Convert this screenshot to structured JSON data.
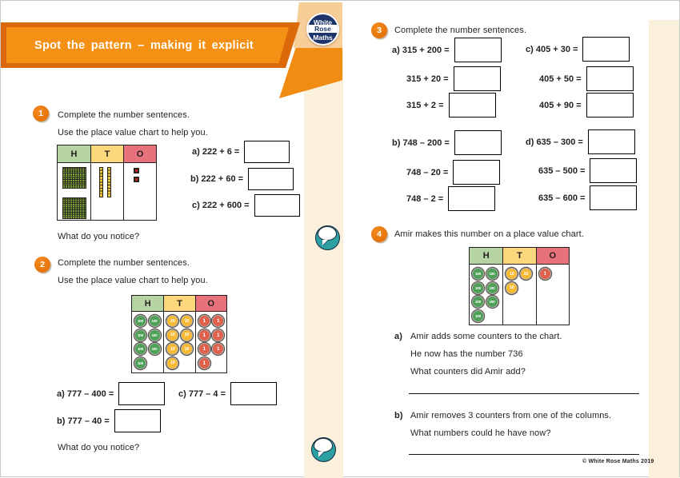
{
  "page": {
    "title": "Spot the pattern – making it explicit",
    "footer": "© White Rose Maths 2019",
    "logo": {
      "line1": "White",
      "line2": "Rose",
      "line3": "Maths"
    }
  },
  "colors": {
    "banner_orange": "#f49114",
    "banner_dark_orange": "#db690a",
    "peach_shape": "#f7cd98",
    "cream_strip": "#fbf0dc",
    "logo_navy": "#1e356b",
    "speech_teal": "#2b9fa1",
    "badge_orange": "#e87410",
    "header_hundreds": "#b6d3a4",
    "header_tens": "#fcd77c",
    "header_ones": "#e7727b",
    "counter_hundreds": "#4ea157",
    "counter_tens": "#f9ba33",
    "counter_ones": "#e0604c"
  },
  "questions": {
    "q1": {
      "number": "1",
      "line1": "Complete the number sentences.",
      "line2": "Use the place value chart to help you.",
      "chart": {
        "headers": [
          "H",
          "T",
          "O"
        ],
        "flats": 2,
        "rods": 2,
        "ones": 2
      },
      "items": [
        "a) 222 + 6 =",
        "b) 222 + 60 =",
        "c) 222 + 600 ="
      ],
      "notice": "What do you notice?"
    },
    "q2": {
      "number": "2",
      "line1": "Complete the number sentences.",
      "line2": "Use the place value chart to help you.",
      "chart": {
        "headers": [
          "H",
          "T",
          "O"
        ],
        "hundreds": 7,
        "tens": 7,
        "ones": 7,
        "labels": {
          "hundreds": "100",
          "tens": "10",
          "ones": "1"
        }
      },
      "items": [
        "a) 777 – 400 =",
        "c) 777 – 4 =",
        "b) 777 – 40 ="
      ],
      "notice": "What do you notice?"
    },
    "q3": {
      "number": "3",
      "line1": "Complete the number sentences.",
      "items": [
        "a) 315 + 200 =",
        "315 + 20 =",
        "315 + 2 =",
        "c) 405 + 30 =",
        "405 + 50 =",
        "405 + 90 =",
        "b) 748 – 200 =",
        "748 – 20 =",
        "748 – 2 =",
        "d) 635 – 300 =",
        "635 – 500 =",
        "635 – 600 ="
      ]
    },
    "q4": {
      "number": "4",
      "intro": "Amir makes this number on a place value chart.",
      "chart": {
        "headers": [
          "H",
          "T",
          "O"
        ],
        "hundreds": 7,
        "tens": 3,
        "ones": 1,
        "labels": {
          "hundreds": "100",
          "tens": "10",
          "ones": "1"
        }
      },
      "part_a": {
        "label": "a)",
        "lines": [
          "Amir adds some counters to the chart.",
          "He now has the number 736",
          "What counters did Amir add?"
        ]
      },
      "part_b": {
        "label": "b)",
        "lines": [
          "Amir removes 3 counters from one of the columns.",
          "What numbers could he have now?"
        ]
      }
    }
  }
}
